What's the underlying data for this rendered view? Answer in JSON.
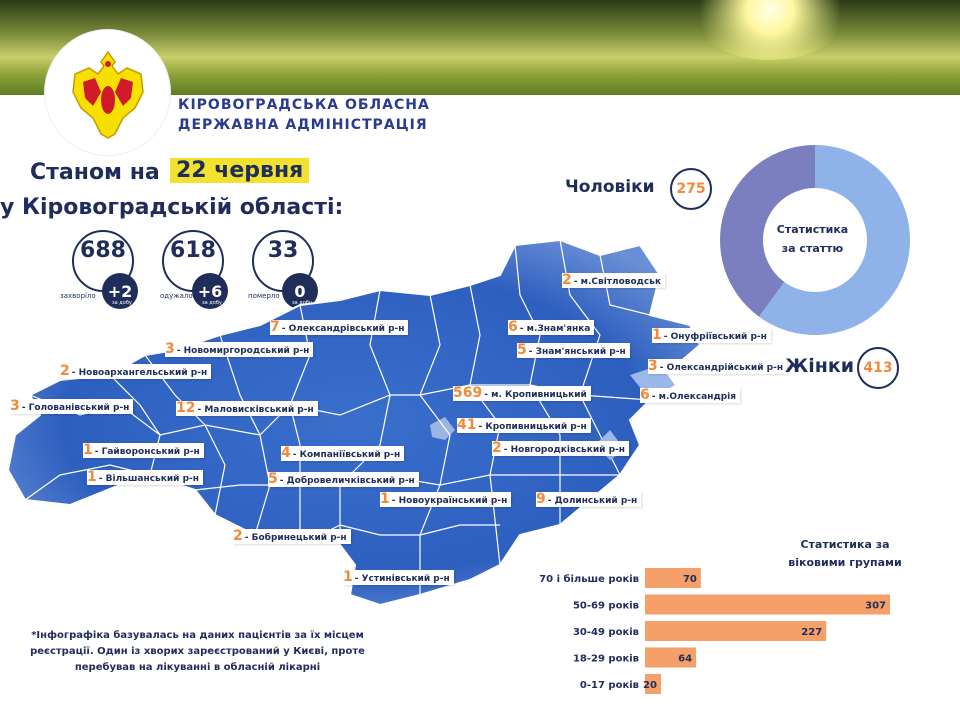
{
  "header": {
    "admin_line1": "КІРОВОГРАДСЬКА ОБЛАСНА",
    "admin_line2": "ДЕРЖАВНА АДМІНІСТРАЦІЯ"
  },
  "status": {
    "prefix": "Станом на",
    "date": "22 червня",
    "region": "у Кіровоградській області:"
  },
  "stats": [
    {
      "value": "688",
      "delta": "+2",
      "label": "захворіло",
      "sub": "за добу"
    },
    {
      "value": "618",
      "delta": "+6",
      "label": "одужало",
      "sub": "за добу"
    },
    {
      "value": "33",
      "delta": "0",
      "label": "померло",
      "sub": "за добу"
    }
  ],
  "districts": [
    {
      "count": "2",
      "name": "- м.Світловодськ"
    },
    {
      "count": "7",
      "name": "- Олександрівський р-н"
    },
    {
      "count": "6",
      "name": "- м.Знам'янка"
    },
    {
      "count": "1",
      "name": "- Онуфріївський р-н"
    },
    {
      "count": "3",
      "name": "- Новомиргородський р-н"
    },
    {
      "count": "5",
      "name": "- Знам'янський р-н"
    },
    {
      "count": "2",
      "name": "- Новоархангельський р-н"
    },
    {
      "count": "3",
      "name": "- Олександрійський р-н"
    },
    {
      "count": "3",
      "name": "- Голованівський р-н"
    },
    {
      "count": "569",
      "name": "- м. Кропивницький"
    },
    {
      "count": "6",
      "name": "- м.Олександрія"
    },
    {
      "count": "12",
      "name": "- Маловисківський р-н"
    },
    {
      "count": "41",
      "name": "- Кропивницький р-н"
    },
    {
      "count": "1",
      "name": "- Гайворонський р-н"
    },
    {
      "count": "4",
      "name": "- Компаніївський р-н"
    },
    {
      "count": "2",
      "name": "- Новгородківський р-н"
    },
    {
      "count": "1",
      "name": "- Вільшанський р-н"
    },
    {
      "count": "5",
      "name": "- Добровеличківський р-н"
    },
    {
      "count": "1",
      "name": "- Новоукраїнський р-н"
    },
    {
      "count": "9",
      "name": "- Долинський р-н"
    },
    {
      "count": "2",
      "name": "- Бобринецький р-н"
    },
    {
      "count": "1",
      "name": "- Устинівський р-н"
    }
  ],
  "footnote": "*Інфографіка базувалась на даних пацієнтів за їх місцем реєстрації. Один із хворих зареєстрований у Києві, проте перебував на лікуванні в обласній лікарні",
  "gender": {
    "men_label": "Чоловіки",
    "men_count": "275",
    "women_label": "Жінки",
    "women_count": "413",
    "title_line1": "Статистика",
    "title_line2": "за статтю"
  },
  "age": {
    "title_line1": "Статистика за",
    "title_line2": "віковими групами"
  },
  "colors": {
    "navy": "#1f2d5a",
    "orange": "#f08a3c",
    "bar": "#f4a068",
    "men_slice": "#7b7fc0",
    "women_slice": "#8fb3e8",
    "map_blue": "#2d63c4",
    "highlight": "#f2e12e"
  },
  "chart_data": [
    {
      "type": "pie",
      "labels": [
        "Чоловіки",
        "Жінки"
      ],
      "values": [
        275,
        413
      ]
    },
    {
      "type": "bar",
      "orientation": "horizontal",
      "categories": [
        "70 і більше років",
        "50-69 років",
        "30-49 років",
        "18-29 років",
        "0-17 років"
      ],
      "values": [
        70,
        307,
        227,
        64,
        20
      ]
    }
  ]
}
